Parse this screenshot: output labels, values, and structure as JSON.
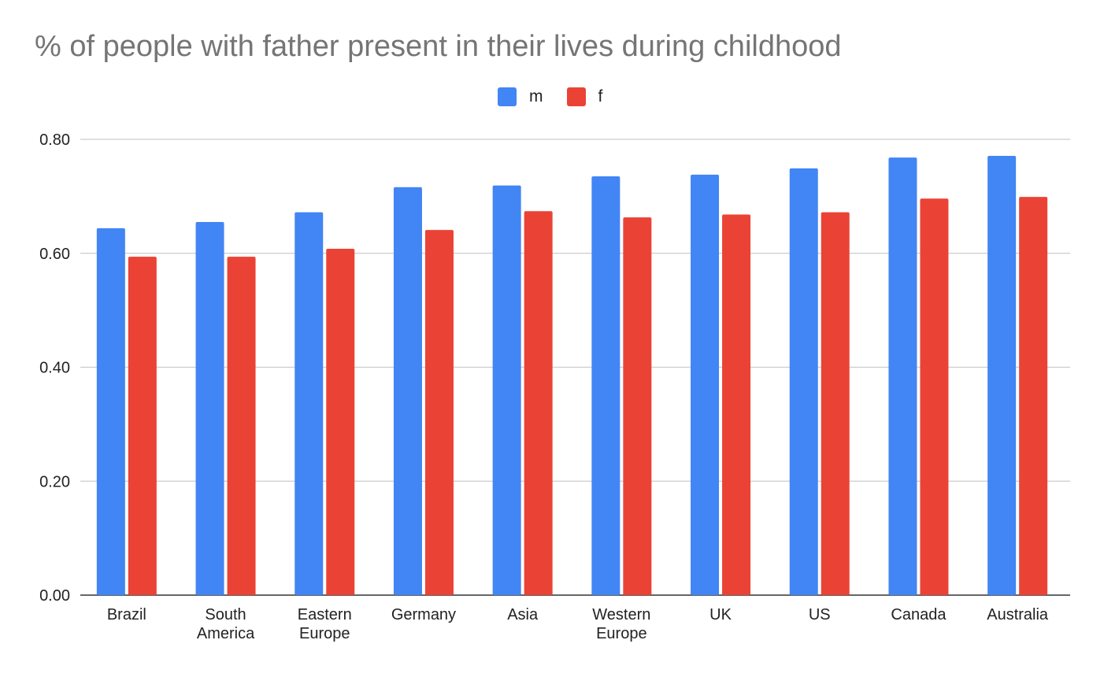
{
  "chart_data": {
    "type": "bar",
    "title": "% of people with father present in their lives during childhood",
    "xlabel": "",
    "ylabel": "",
    "categories": [
      [
        "Brazil"
      ],
      [
        "South",
        "America"
      ],
      [
        "Eastern",
        "Europe"
      ],
      [
        "Germany"
      ],
      [
        "Asia"
      ],
      [
        "Western",
        "Europe"
      ],
      [
        "UK"
      ],
      [
        "US"
      ],
      [
        "Canada"
      ],
      [
        "Australia"
      ]
    ],
    "series": [
      {
        "name": "m",
        "color": "#4285F4",
        "values": [
          0.644,
          0.655,
          0.672,
          0.716,
          0.719,
          0.735,
          0.738,
          0.749,
          0.768,
          0.771
        ]
      },
      {
        "name": "f",
        "color": "#EA4335",
        "values": [
          0.594,
          0.594,
          0.608,
          0.641,
          0.674,
          0.663,
          0.668,
          0.672,
          0.696,
          0.699
        ]
      }
    ],
    "ylim": [
      0,
      0.8
    ],
    "yticks": [
      "0.00",
      "0.20",
      "0.40",
      "0.60",
      "0.80"
    ],
    "grid": true,
    "legend_position": "top-center"
  }
}
